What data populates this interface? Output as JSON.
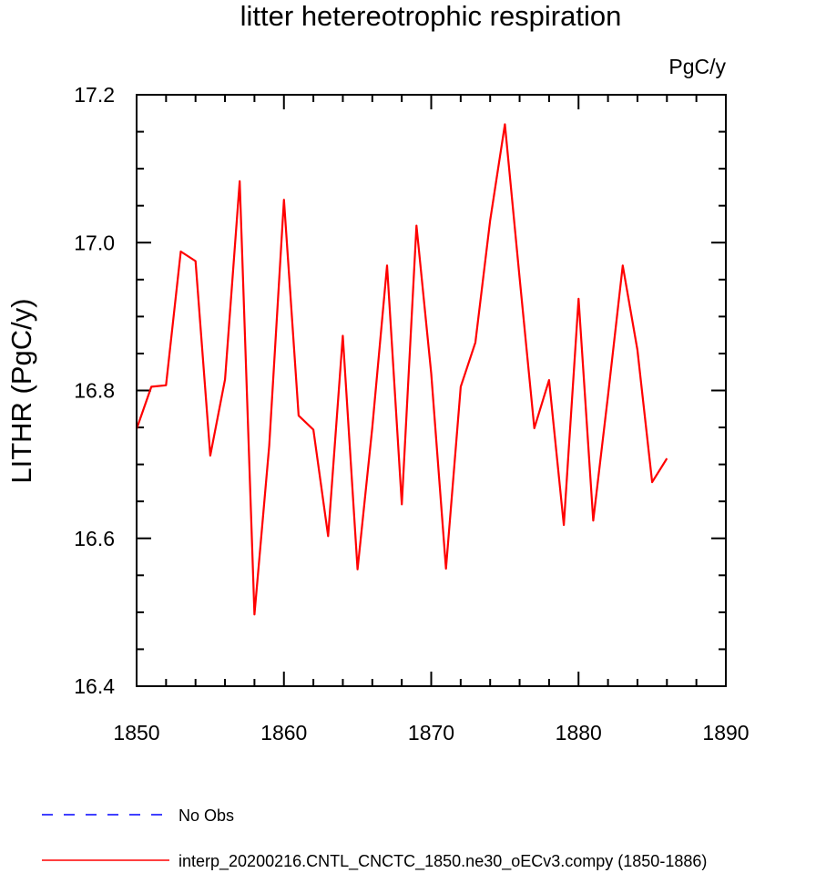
{
  "chart_data": {
    "type": "line",
    "title": "litter hetereotrophic respiration",
    "units_label": "PgC/y",
    "ylabel": "LITHR  (PgC/y)",
    "xlabel": "",
    "xlim": [
      1850,
      1890
    ],
    "ylim": [
      16.4,
      17.2
    ],
    "x_ticks": [
      "1850",
      "1860",
      "1870",
      "1880",
      "1890"
    ],
    "y_ticks": [
      "16.4",
      "16.6",
      "16.8",
      "17.0",
      "17.2"
    ],
    "x_tick_values": [
      1850,
      1860,
      1870,
      1880,
      1890
    ],
    "y_tick_values": [
      16.4,
      16.6,
      16.8,
      17.0,
      17.2
    ],
    "grid": false,
    "legend_position": "bottom-left",
    "series": [
      {
        "name": "No Obs",
        "color": "#0000ff",
        "style": "dashed",
        "x": [],
        "values": []
      },
      {
        "name": "interp_20200216.CNTL_CNCTC_1850.ne30_oECv3.compy (1850-1886)",
        "color": "#ff0000",
        "style": "solid",
        "x": [
          1850,
          1851,
          1852,
          1853,
          1854,
          1855,
          1856,
          1857,
          1858,
          1859,
          1860,
          1861,
          1862,
          1863,
          1864,
          1865,
          1866,
          1867,
          1868,
          1869,
          1870,
          1871,
          1872,
          1873,
          1874,
          1875,
          1876,
          1877,
          1878,
          1879,
          1880,
          1881,
          1882,
          1883,
          1884,
          1885,
          1886
        ],
        "values": [
          16.748,
          16.805,
          16.807,
          16.988,
          16.975,
          16.712,
          16.815,
          17.083,
          16.497,
          16.725,
          17.058,
          16.766,
          16.747,
          16.603,
          16.874,
          16.558,
          16.75,
          16.969,
          16.646,
          17.023,
          16.823,
          16.559,
          16.805,
          16.865,
          17.03,
          17.16,
          16.953,
          16.749,
          16.814,
          16.618,
          16.924,
          16.624,
          16.793,
          16.969,
          16.855,
          16.676,
          16.708
        ]
      }
    ]
  }
}
